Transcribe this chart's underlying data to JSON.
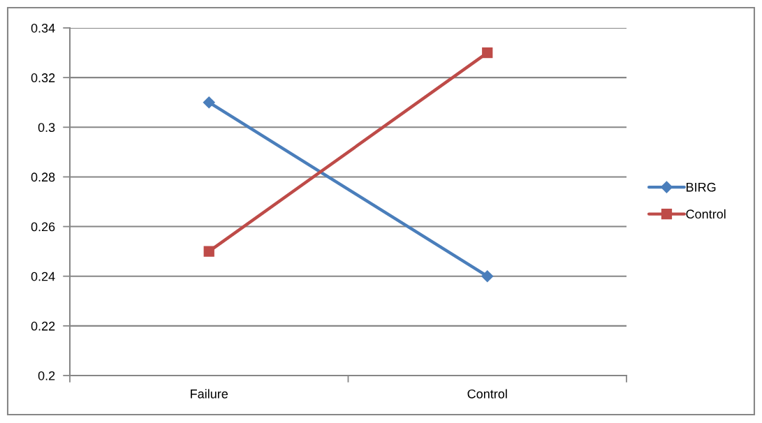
{
  "chart_data": {
    "type": "line",
    "categories": [
      "Failure",
      "Control"
    ],
    "series": [
      {
        "name": "BIRG",
        "color": "#4a7ebb",
        "marker": "diamond",
        "values": [
          0.31,
          0.24
        ]
      },
      {
        "name": "Control",
        "color": "#be4b48",
        "marker": "square",
        "values": [
          0.25,
          0.33
        ]
      }
    ],
    "ylim": [
      0.2,
      0.34
    ],
    "yticks": [
      {
        "value": 0.2,
        "label": "0.2"
      },
      0.22,
      0.24,
      0.26,
      0.28,
      {
        "value": 0.3,
        "label": "0.3"
      },
      0.32,
      0.34
    ],
    "grid": "y",
    "legend": "right",
    "line_style": "solid"
  }
}
